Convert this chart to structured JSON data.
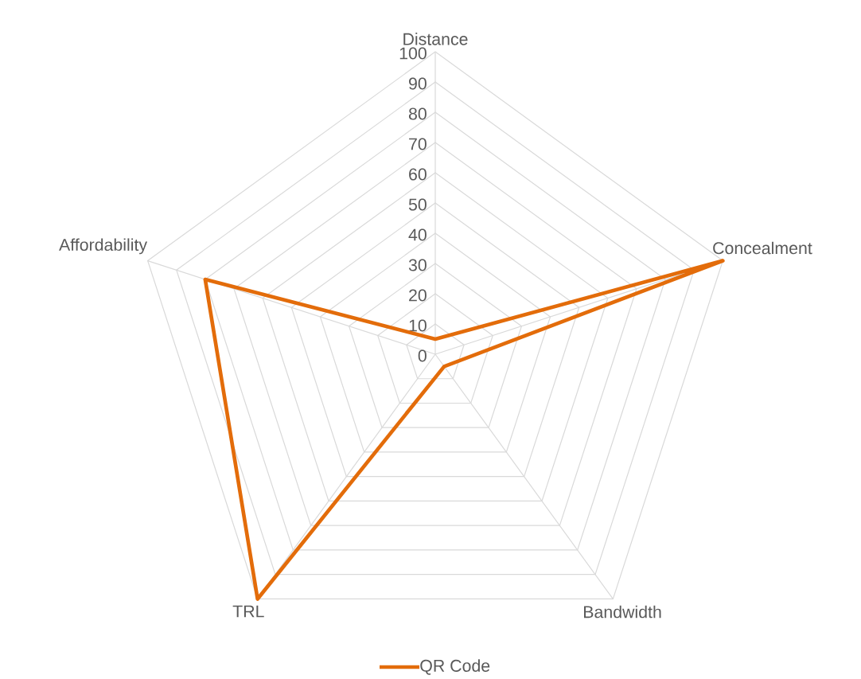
{
  "chart_data": {
    "type": "radar",
    "categories": [
      "Distance",
      "Concealment",
      "Bandwidth",
      "TRL",
      "Affordability"
    ],
    "series": [
      {
        "name": "QR Code",
        "color": "#e36c0a",
        "values": [
          5,
          100,
          5,
          100,
          80
        ]
      }
    ],
    "ylim": [
      0,
      100
    ],
    "yticks": [
      0,
      10,
      20,
      30,
      40,
      50,
      60,
      70,
      80,
      90,
      100
    ],
    "grid": true,
    "legend": "bottom",
    "marker": "none",
    "line_style": "solid"
  }
}
